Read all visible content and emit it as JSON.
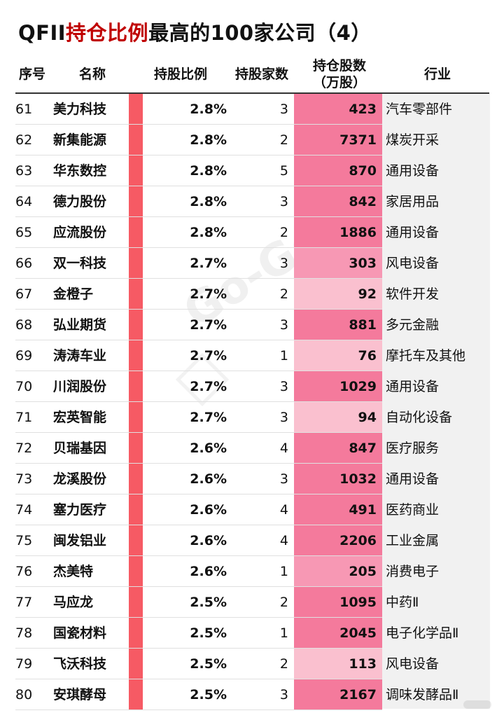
{
  "title": {
    "prefix": "QFII",
    "highlight": "持仓比例",
    "suffix": "最高的100家公司（4）"
  },
  "headers": {
    "no": "序号",
    "name": "名称",
    "ratio": "持股比例",
    "count": "持股家数",
    "shares_line1": "持仓股数",
    "shares_line2": "（万股）",
    "industry": "行业"
  },
  "watermark": "Go-Goal",
  "colors": {
    "ratio_bar": "#f65a64",
    "shares_dark": "#f47a9c",
    "shares_mid": "#f798b4",
    "shares_light": "#fac0cf",
    "title_highlight": "#c00000"
  },
  "rows": [
    {
      "no": "61",
      "name": "美力科技",
      "ratio": "2.8%",
      "count": "3",
      "shares": "423",
      "industry": "汽车零部件"
    },
    {
      "no": "62",
      "name": "新集能源",
      "ratio": "2.8%",
      "count": "2",
      "shares": "7371",
      "industry": "煤炭开采"
    },
    {
      "no": "63",
      "name": "华东数控",
      "ratio": "2.8%",
      "count": "5",
      "shares": "870",
      "industry": "通用设备"
    },
    {
      "no": "64",
      "name": "德力股份",
      "ratio": "2.8%",
      "count": "3",
      "shares": "842",
      "industry": "家居用品"
    },
    {
      "no": "65",
      "name": "应流股份",
      "ratio": "2.8%",
      "count": "2",
      "shares": "1886",
      "industry": "通用设备"
    },
    {
      "no": "66",
      "name": "双一科技",
      "ratio": "2.7%",
      "count": "3",
      "shares": "303",
      "industry": "风电设备"
    },
    {
      "no": "67",
      "name": "金橙子",
      "ratio": "2.7%",
      "count": "2",
      "shares": "92",
      "industry": "软件开发"
    },
    {
      "no": "68",
      "name": "弘业期货",
      "ratio": "2.7%",
      "count": "3",
      "shares": "881",
      "industry": "多元金融"
    },
    {
      "no": "69",
      "name": "涛涛车业",
      "ratio": "2.7%",
      "count": "1",
      "shares": "76",
      "industry": "摩托车及其他"
    },
    {
      "no": "70",
      "name": "川润股份",
      "ratio": "2.7%",
      "count": "3",
      "shares": "1029",
      "industry": "通用设备"
    },
    {
      "no": "71",
      "name": "宏英智能",
      "ratio": "2.7%",
      "count": "3",
      "shares": "94",
      "industry": "自动化设备"
    },
    {
      "no": "72",
      "name": "贝瑞基因",
      "ratio": "2.6%",
      "count": "4",
      "shares": "847",
      "industry": "医疗服务"
    },
    {
      "no": "73",
      "name": "龙溪股份",
      "ratio": "2.6%",
      "count": "3",
      "shares": "1032",
      "industry": "通用设备"
    },
    {
      "no": "74",
      "name": "塞力医疗",
      "ratio": "2.6%",
      "count": "4",
      "shares": "491",
      "industry": "医药商业"
    },
    {
      "no": "75",
      "name": "闽发铝业",
      "ratio": "2.6%",
      "count": "4",
      "shares": "2206",
      "industry": "工业金属"
    },
    {
      "no": "76",
      "name": "杰美特",
      "ratio": "2.6%",
      "count": "1",
      "shares": "205",
      "industry": "消费电子"
    },
    {
      "no": "77",
      "name": "马应龙",
      "ratio": "2.5%",
      "count": "2",
      "shares": "1095",
      "industry": "中药Ⅱ"
    },
    {
      "no": "78",
      "name": "国瓷材料",
      "ratio": "2.5%",
      "count": "1",
      "shares": "2045",
      "industry": "电子化学品Ⅱ"
    },
    {
      "no": "79",
      "name": "飞沃科技",
      "ratio": "2.5%",
      "count": "2",
      "shares": "113",
      "industry": "风电设备"
    },
    {
      "no": "80",
      "name": "安琪酵母",
      "ratio": "2.5%",
      "count": "3",
      "shares": "2167",
      "industry": "调味发酵品Ⅱ"
    }
  ]
}
